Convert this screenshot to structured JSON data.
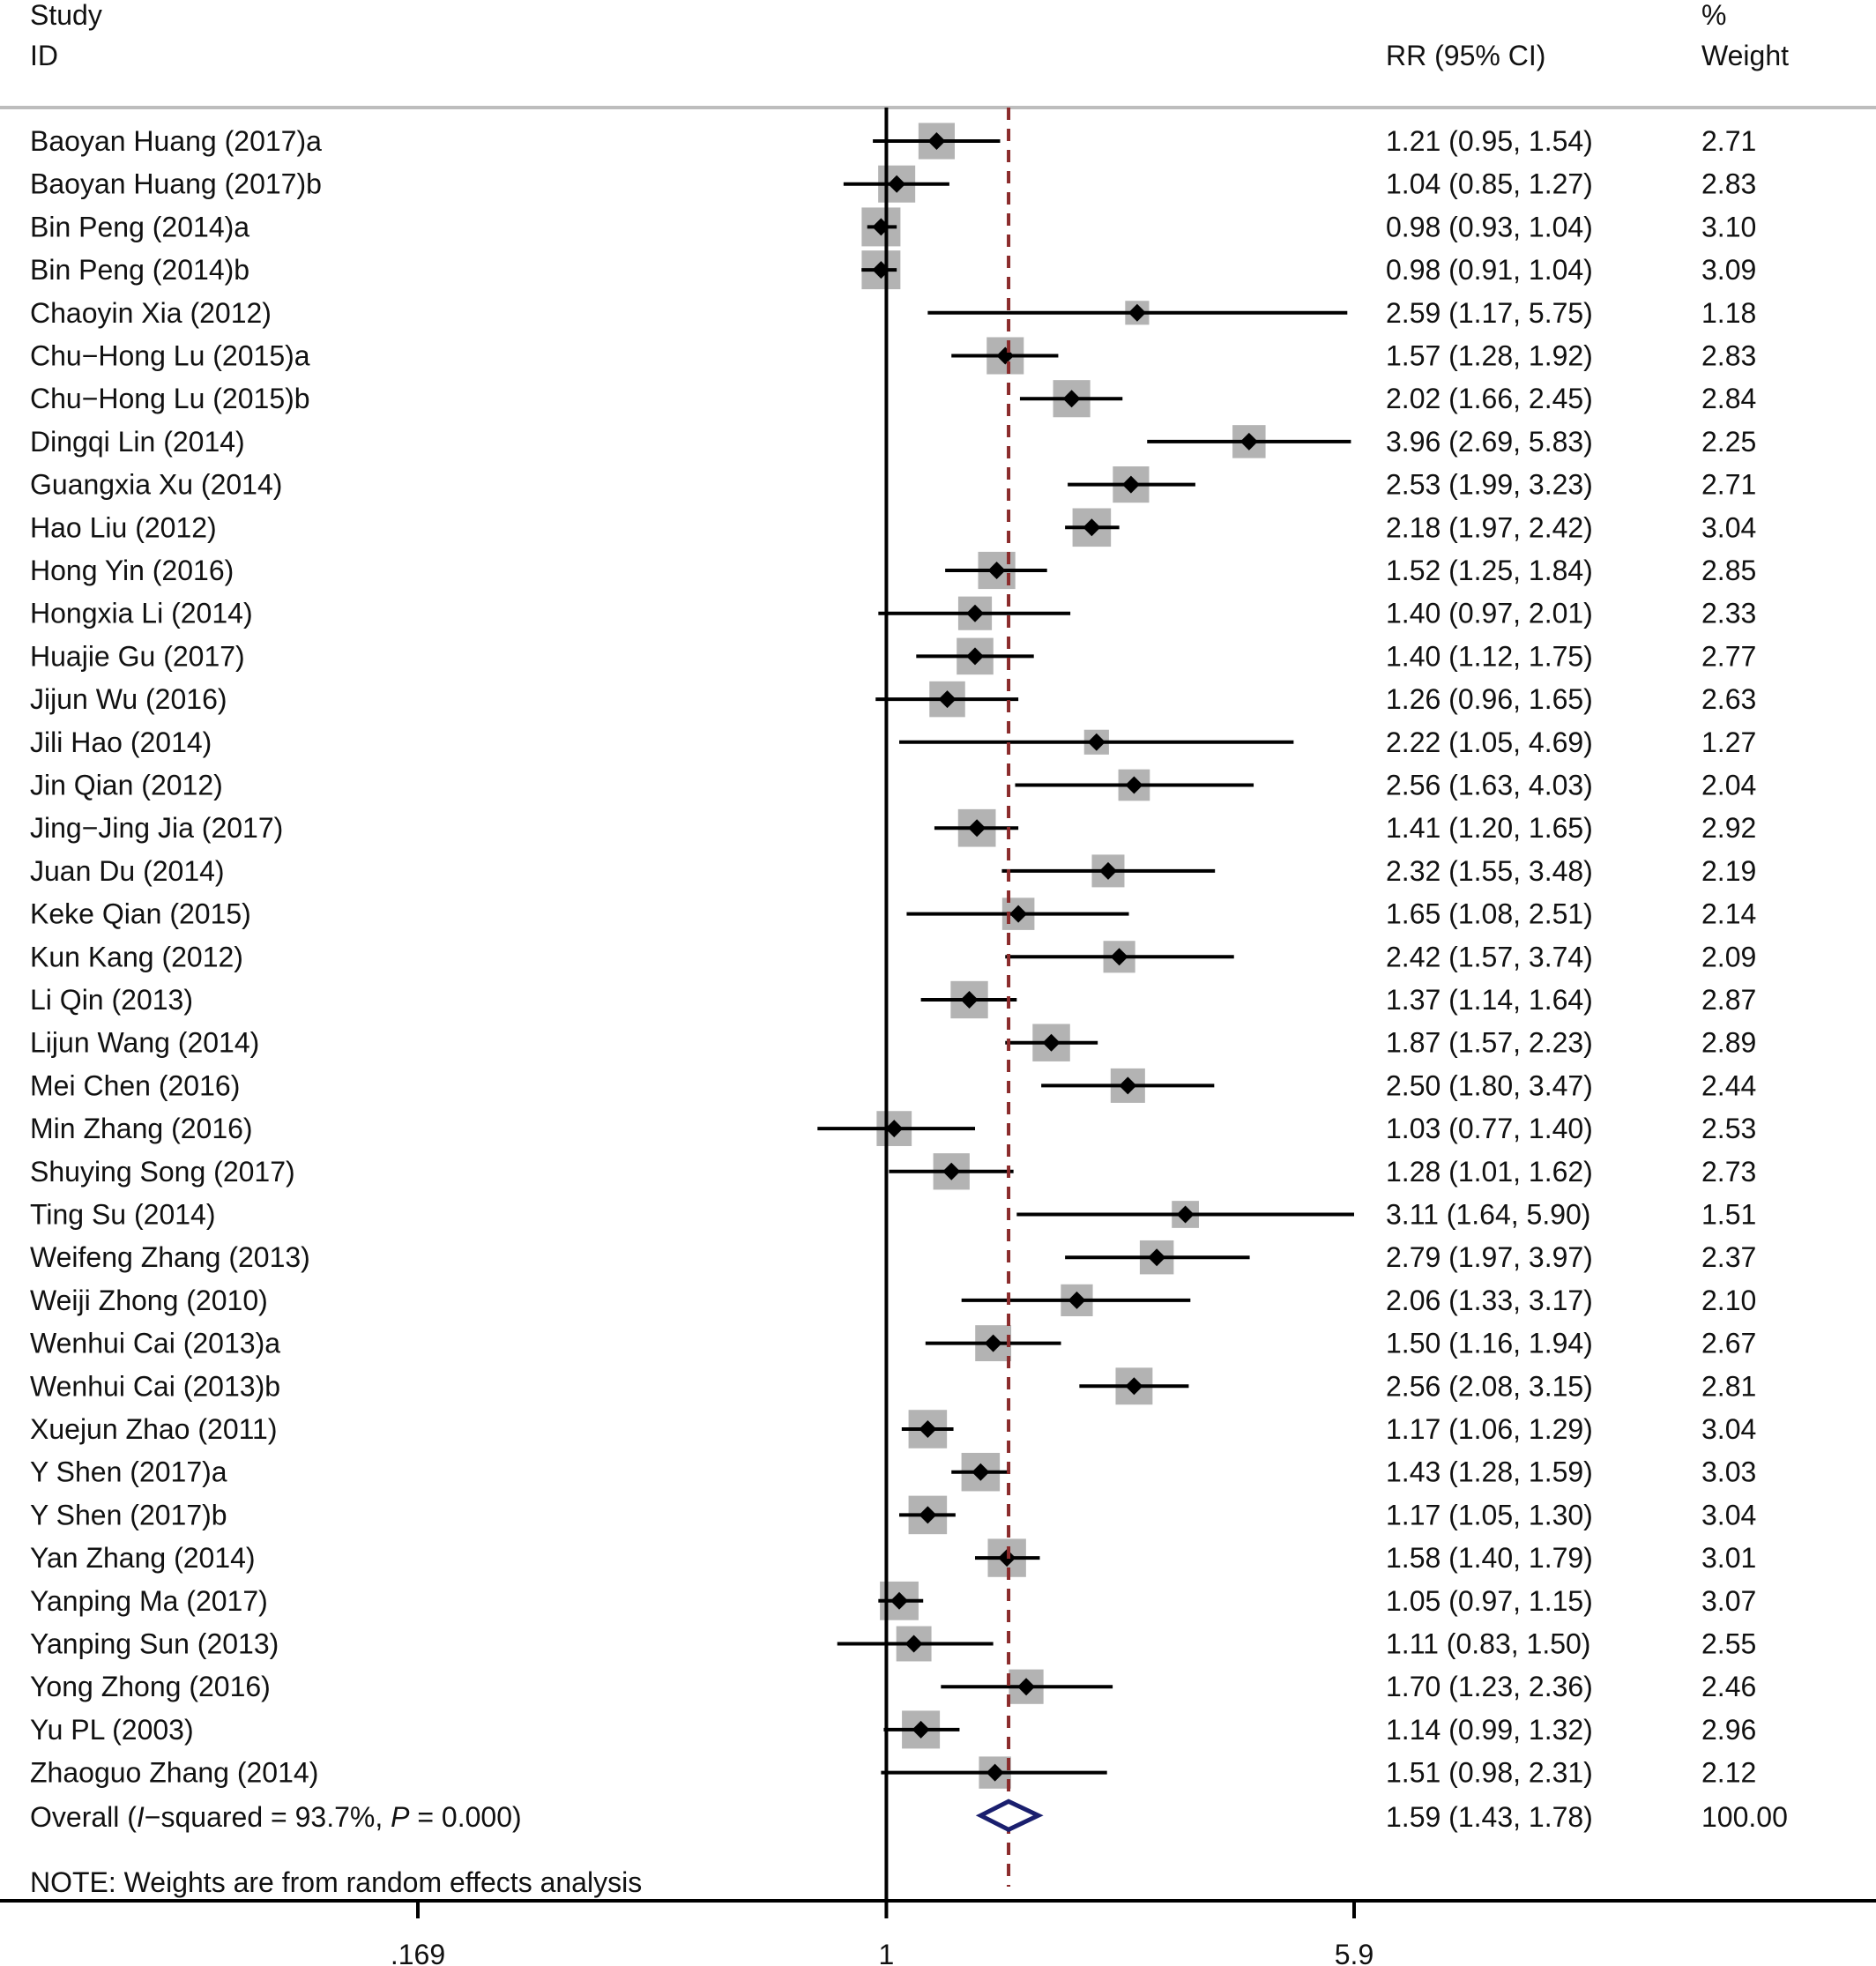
{
  "chart_data": {
    "type": "forest",
    "headers": {
      "study_line1": "Study",
      "study_line2": "ID",
      "effect": "RR (95% CI)",
      "weight_line1": "%",
      "weight_line2": "Weight"
    },
    "x_scale": "log",
    "x_ticks": [
      {
        "value": 0.169,
        "label": ".169"
      },
      {
        "value": 1,
        "label": "1"
      },
      {
        "value": 5.9,
        "label": "5.9"
      }
    ],
    "null_line": 1,
    "studies": [
      {
        "name": "Baoyan Huang (2017)a",
        "rr": 1.21,
        "lo": 0.95,
        "hi": 1.54,
        "ci_text": "1.21 (0.95, 1.54)",
        "weight": "2.71"
      },
      {
        "name": "Baoyan Huang (2017)b",
        "rr": 1.04,
        "lo": 0.85,
        "hi": 1.27,
        "ci_text": "1.04 (0.85, 1.27)",
        "weight": "2.83"
      },
      {
        "name": "Bin Peng (2014)a",
        "rr": 0.98,
        "lo": 0.93,
        "hi": 1.04,
        "ci_text": "0.98 (0.93, 1.04)",
        "weight": "3.10"
      },
      {
        "name": "Bin Peng (2014)b",
        "rr": 0.98,
        "lo": 0.91,
        "hi": 1.04,
        "ci_text": "0.98 (0.91, 1.04)",
        "weight": "3.09"
      },
      {
        "name": "Chaoyin Xia (2012)",
        "rr": 2.59,
        "lo": 1.17,
        "hi": 5.75,
        "ci_text": "2.59 (1.17, 5.75)",
        "weight": "1.18"
      },
      {
        "name": "Chu−Hong Lu (2015)a",
        "rr": 1.57,
        "lo": 1.28,
        "hi": 1.92,
        "ci_text": "1.57 (1.28, 1.92)",
        "weight": "2.83"
      },
      {
        "name": "Chu−Hong Lu (2015)b",
        "rr": 2.02,
        "lo": 1.66,
        "hi": 2.45,
        "ci_text": "2.02 (1.66, 2.45)",
        "weight": "2.84"
      },
      {
        "name": "Dingqi Lin (2014)",
        "rr": 3.96,
        "lo": 2.69,
        "hi": 5.83,
        "ci_text": "3.96 (2.69, 5.83)",
        "weight": "2.25"
      },
      {
        "name": "Guangxia Xu (2014)",
        "rr": 2.53,
        "lo": 1.99,
        "hi": 3.23,
        "ci_text": "2.53 (1.99, 3.23)",
        "weight": "2.71"
      },
      {
        "name": "Hao Liu (2012)",
        "rr": 2.18,
        "lo": 1.97,
        "hi": 2.42,
        "ci_text": "2.18 (1.97, 2.42)",
        "weight": "3.04"
      },
      {
        "name": "Hong Yin (2016)",
        "rr": 1.52,
        "lo": 1.25,
        "hi": 1.84,
        "ci_text": "1.52 (1.25, 1.84)",
        "weight": "2.85"
      },
      {
        "name": "Hongxia Li (2014)",
        "rr": 1.4,
        "lo": 0.97,
        "hi": 2.01,
        "ci_text": "1.40 (0.97, 2.01)",
        "weight": "2.33"
      },
      {
        "name": "Huajie Gu (2017)",
        "rr": 1.4,
        "lo": 1.12,
        "hi": 1.75,
        "ci_text": "1.40 (1.12, 1.75)",
        "weight": "2.77"
      },
      {
        "name": "Jijun Wu (2016)",
        "rr": 1.26,
        "lo": 0.96,
        "hi": 1.65,
        "ci_text": "1.26 (0.96, 1.65)",
        "weight": "2.63"
      },
      {
        "name": "Jili Hao (2014)",
        "rr": 2.22,
        "lo": 1.05,
        "hi": 4.69,
        "ci_text": "2.22 (1.05, 4.69)",
        "weight": "1.27"
      },
      {
        "name": "Jin Qian (2012)",
        "rr": 2.56,
        "lo": 1.63,
        "hi": 4.03,
        "ci_text": "2.56 (1.63, 4.03)",
        "weight": "2.04"
      },
      {
        "name": "Jing−Jing Jia (2017)",
        "rr": 1.41,
        "lo": 1.2,
        "hi": 1.65,
        "ci_text": "1.41 (1.20, 1.65)",
        "weight": "2.92"
      },
      {
        "name": "Juan Du (2014)",
        "rr": 2.32,
        "lo": 1.55,
        "hi": 3.48,
        "ci_text": "2.32 (1.55, 3.48)",
        "weight": "2.19"
      },
      {
        "name": "Keke Qian (2015)",
        "rr": 1.65,
        "lo": 1.08,
        "hi": 2.51,
        "ci_text": "1.65 (1.08, 2.51)",
        "weight": "2.14"
      },
      {
        "name": "Kun Kang (2012)",
        "rr": 2.42,
        "lo": 1.57,
        "hi": 3.74,
        "ci_text": "2.42 (1.57, 3.74)",
        "weight": "2.09"
      },
      {
        "name": "Li Qin (2013)",
        "rr": 1.37,
        "lo": 1.14,
        "hi": 1.64,
        "ci_text": "1.37 (1.14, 1.64)",
        "weight": "2.87"
      },
      {
        "name": "Lijun Wang (2014)",
        "rr": 1.87,
        "lo": 1.57,
        "hi": 2.23,
        "ci_text": "1.87 (1.57, 2.23)",
        "weight": "2.89"
      },
      {
        "name": "Mei Chen (2016)",
        "rr": 2.5,
        "lo": 1.8,
        "hi": 3.47,
        "ci_text": "2.50 (1.80, 3.47)",
        "weight": "2.44"
      },
      {
        "name": "Min Zhang (2016)",
        "rr": 1.03,
        "lo": 0.77,
        "hi": 1.4,
        "ci_text": "1.03 (0.77, 1.40)",
        "weight": "2.53"
      },
      {
        "name": "Shuying Song (2017)",
        "rr": 1.28,
        "lo": 1.01,
        "hi": 1.62,
        "ci_text": "1.28 (1.01, 1.62)",
        "weight": "2.73"
      },
      {
        "name": "Ting Su (2014)",
        "rr": 3.11,
        "lo": 1.64,
        "hi": 5.9,
        "ci_text": "3.11 (1.64, 5.90)",
        "weight": "1.51"
      },
      {
        "name": "Weifeng Zhang (2013)",
        "rr": 2.79,
        "lo": 1.97,
        "hi": 3.97,
        "ci_text": "2.79 (1.97, 3.97)",
        "weight": "2.37"
      },
      {
        "name": "Weiji Zhong (2010)",
        "rr": 2.06,
        "lo": 1.33,
        "hi": 3.17,
        "ci_text": "2.06 (1.33, 3.17)",
        "weight": "2.10"
      },
      {
        "name": "Wenhui Cai (2013)a",
        "rr": 1.5,
        "lo": 1.16,
        "hi": 1.94,
        "ci_text": "1.50 (1.16, 1.94)",
        "weight": "2.67"
      },
      {
        "name": "Wenhui Cai (2013)b",
        "rr": 2.56,
        "lo": 2.08,
        "hi": 3.15,
        "ci_text": "2.56 (2.08, 3.15)",
        "weight": "2.81"
      },
      {
        "name": "Xuejun Zhao (2011)",
        "rr": 1.17,
        "lo": 1.06,
        "hi": 1.29,
        "ci_text": "1.17 (1.06, 1.29)",
        "weight": "3.04"
      },
      {
        "name": "Y Shen (2017)a",
        "rr": 1.43,
        "lo": 1.28,
        "hi": 1.59,
        "ci_text": "1.43 (1.28, 1.59)",
        "weight": "3.03"
      },
      {
        "name": "Y Shen (2017)b",
        "rr": 1.17,
        "lo": 1.05,
        "hi": 1.3,
        "ci_text": "1.17 (1.05, 1.30)",
        "weight": "3.04"
      },
      {
        "name": "Yan Zhang (2014)",
        "rr": 1.58,
        "lo": 1.4,
        "hi": 1.79,
        "ci_text": "1.58 (1.40, 1.79)",
        "weight": "3.01"
      },
      {
        "name": "Yanping Ma (2017)",
        "rr": 1.05,
        "lo": 0.97,
        "hi": 1.15,
        "ci_text": "1.05 (0.97, 1.15)",
        "weight": "3.07"
      },
      {
        "name": "Yanping Sun (2013)",
        "rr": 1.11,
        "lo": 0.83,
        "hi": 1.5,
        "ci_text": "1.11 (0.83, 1.50)",
        "weight": "2.55"
      },
      {
        "name": "Yong Zhong (2016)",
        "rr": 1.7,
        "lo": 1.23,
        "hi": 2.36,
        "ci_text": "1.70 (1.23, 2.36)",
        "weight": "2.46"
      },
      {
        "name": "Yu PL (2003)",
        "rr": 1.14,
        "lo": 0.99,
        "hi": 1.32,
        "ci_text": "1.14 (0.99, 1.32)",
        "weight": "2.96"
      },
      {
        "name": "Zhaoguo Zhang (2014)",
        "rr": 1.51,
        "lo": 0.98,
        "hi": 2.31,
        "ci_text": "1.51 (0.98, 2.31)",
        "weight": "2.12"
      }
    ],
    "overall": {
      "label_prefix": "Overall  (",
      "i_symbol": "I",
      "label_mid": "−squared = 93.7%, ",
      "p_symbol": "P",
      "label_end": " = 0.000)",
      "rr": 1.59,
      "lo": 1.43,
      "hi": 1.78,
      "ci_text": "1.59 (1.43, 1.78)",
      "weight": "100.00"
    },
    "note": "NOTE: Weights are from random effects analysis",
    "colors": {
      "text": "#111111",
      "box": "#b3b3b3",
      "point": "#000000",
      "ci_line": "#000000",
      "overall_line": "#8b2b2b",
      "overall_diamond": "#1a1f6e",
      "header_rule": "#bdbdbd"
    }
  }
}
